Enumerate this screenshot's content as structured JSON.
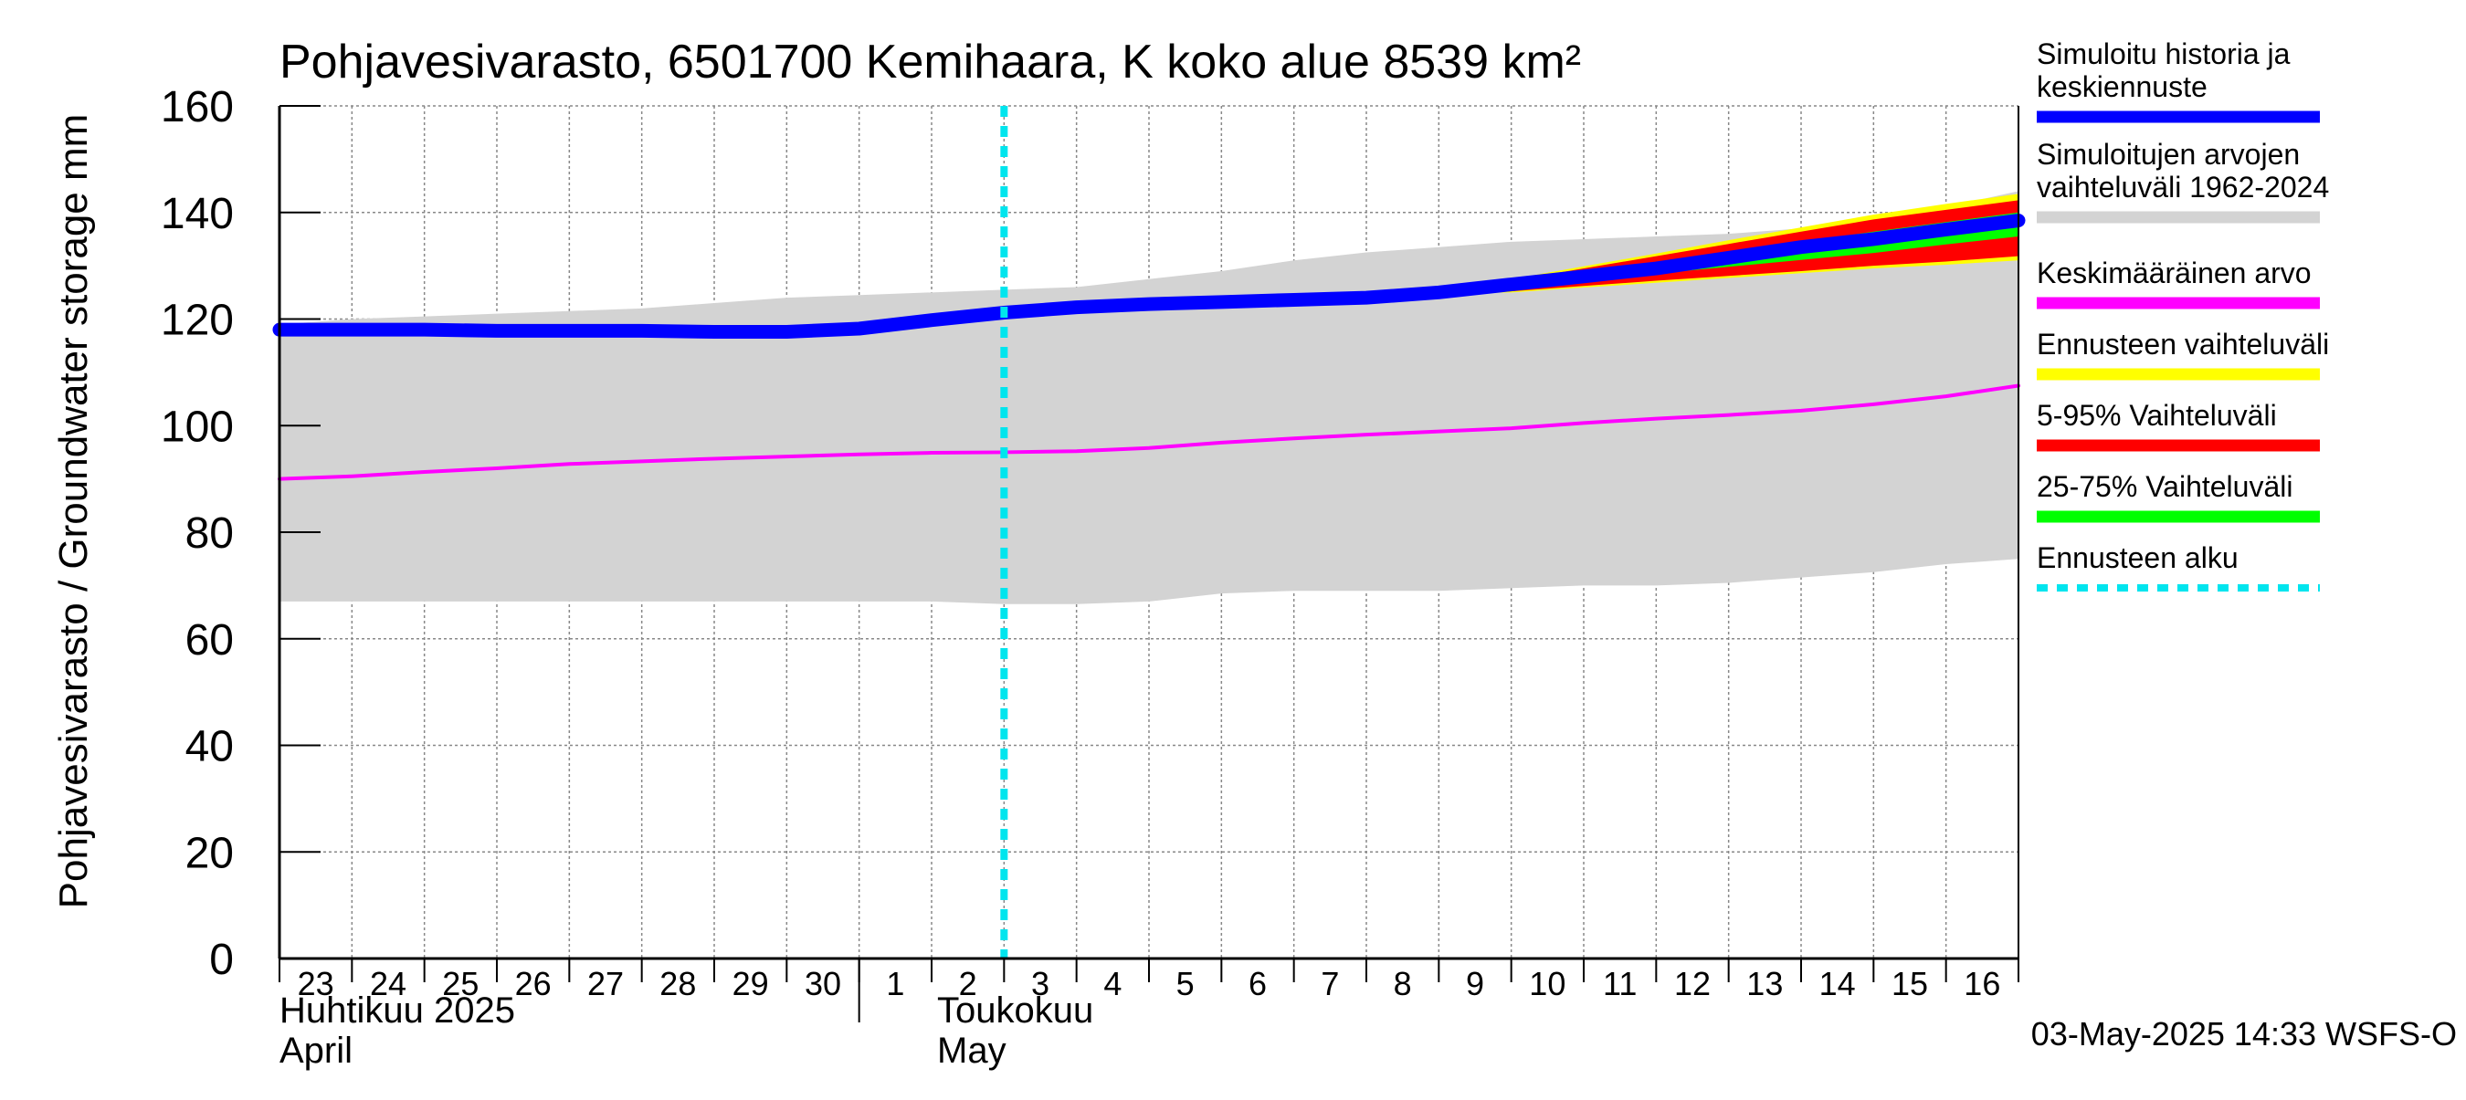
{
  "chart_data": {
    "type": "area",
    "title": "Pohjavesivarasto, 6501700 Kemihaara, K koko alue 8539 km²",
    "ylabel": "Pohjavesivarasto / Groundwater storage   mm",
    "ylim": [
      0,
      160
    ],
    "yticks": [
      0,
      20,
      40,
      60,
      80,
      100,
      120,
      140,
      160
    ],
    "grid": true,
    "legend_position": "right",
    "x_tick_labels": [
      "23",
      "24",
      "25",
      "26",
      "27",
      "28",
      "29",
      "30",
      "1",
      "2",
      "3",
      "4",
      "5",
      "6",
      "7",
      "8",
      "9",
      "10",
      "11",
      "12",
      "13",
      "14",
      "15",
      "16"
    ],
    "x_days": [
      0,
      1,
      2,
      3,
      4,
      5,
      6,
      7,
      8,
      9,
      10,
      11,
      12,
      13,
      14,
      15,
      16,
      17,
      18,
      19,
      20,
      21,
      22,
      23,
      24
    ],
    "month_labels": [
      {
        "line1": "Huhtikuu  2025",
        "line2": "April"
      },
      {
        "line1": "Toukokuu",
        "line2": "May"
      }
    ],
    "forecast_start": "2025-05-03",
    "timestamp": "03-May-2025 14:33 WSFS-O",
    "series": [
      {
        "name": "Simuloitujen arvojen vaihteluväli 1962-2024",
        "color": "#d3d3d3",
        "upper": [
          119,
          120,
          120.5,
          121,
          121.5,
          122,
          123,
          124,
          124.5,
          125,
          125.5,
          126,
          127.5,
          129,
          131,
          132.5,
          133.5,
          134.5,
          135,
          135.5,
          136,
          137,
          138.5,
          141,
          144
        ],
        "lower": [
          67,
          67,
          67,
          67,
          67,
          67,
          67,
          67,
          67,
          67,
          66.5,
          66.5,
          67,
          68.5,
          69,
          69,
          69,
          69.5,
          70,
          70,
          70.5,
          71.5,
          72.5,
          74,
          75
        ]
      },
      {
        "name": "Keskimääräinen arvo",
        "color": "#ff00ff",
        "values": [
          90,
          90.5,
          91.3,
          92,
          92.8,
          93.3,
          93.8,
          94.2,
          94.6,
          94.9,
          95,
          95.2,
          95.8,
          96.8,
          97.6,
          98.3,
          98.9,
          99.5,
          100.5,
          101.3,
          102,
          102.8,
          104,
          105.5,
          107.5
        ]
      },
      {
        "name": "Simuloitu historia ja keskiennuste",
        "color": "#0000ff",
        "values": [
          118,
          118,
          118,
          117.8,
          117.8,
          117.8,
          117.6,
          117.6,
          118.2,
          119.8,
          121.2,
          122.2,
          122.8,
          123.2,
          123.6,
          124,
          125,
          126.5,
          128,
          129.5,
          131.5,
          133.5,
          135,
          136.8,
          138.5
        ]
      },
      {
        "name": "Ennusteen vaihteluväli",
        "color": "#ffff00",
        "start_index": 16,
        "upper": [
          125,
          127.5,
          129.9,
          132.3,
          134.8,
          137.2,
          139.6,
          141.6,
          143.5
        ],
        "lower": [
          124.8,
          125,
          125.9,
          126.8,
          127.7,
          128.6,
          129.5,
          130.2,
          131
        ]
      },
      {
        "name": "5-95% Vaihteluväli",
        "color": "#ff0000",
        "start_index": 16,
        "upper": [
          125,
          127.2,
          129.5,
          131.8,
          134.1,
          136.4,
          138.7,
          140.5,
          142.3
        ],
        "lower": [
          124.8,
          125.2,
          126.2,
          127.2,
          128.1,
          129,
          130,
          130.8,
          131.8
        ]
      },
      {
        "name": "25-75% Vaihteluväli",
        "color": "#00ff00",
        "start_index": 16,
        "upper": [
          125,
          126.8,
          128.7,
          130.6,
          132.6,
          134.5,
          136.4,
          138.2,
          140
        ],
        "lower": [
          124.8,
          125.9,
          127.2,
          128.5,
          129.8,
          131.1,
          132.4,
          134,
          135.5
        ]
      },
      {
        "name": "Ennusteen alku",
        "color": "#00e5ee",
        "x_day": 10
      }
    ],
    "legend": [
      {
        "label": "Simuloitu historia ja keskiennuste",
        "lines": [
          "Simuloitu historia ja",
          "keskiennuste"
        ],
        "color": "#0000ff",
        "style": "solid"
      },
      {
        "label": "Simuloitujen arvojen vaihteluväli 1962-2024",
        "lines": [
          "Simuloitujen arvojen",
          "vaihteluväli 1962-2024"
        ],
        "color": "#d3d3d3",
        "style": "solid"
      },
      {
        "label": "Keskimääräinen arvo",
        "lines": [
          "Keskimääräinen arvo"
        ],
        "color": "#ff00ff",
        "style": "solid"
      },
      {
        "label": "Ennusteen vaihteluväli",
        "lines": [
          "Ennusteen vaihteluväli"
        ],
        "color": "#ffff00",
        "style": "solid"
      },
      {
        "label": "5-95% Vaihteluväli",
        "lines": [
          "5-95% Vaihteluväli"
        ],
        "color": "#ff0000",
        "style": "solid"
      },
      {
        "label": "25-75% Vaihteluväli",
        "lines": [
          "25-75% Vaihteluväli"
        ],
        "color": "#00ff00",
        "style": "solid"
      },
      {
        "label": "Ennusteen alku",
        "lines": [
          "Ennusteen alku"
        ],
        "color": "#00e5ee",
        "style": "dotted"
      }
    ]
  }
}
